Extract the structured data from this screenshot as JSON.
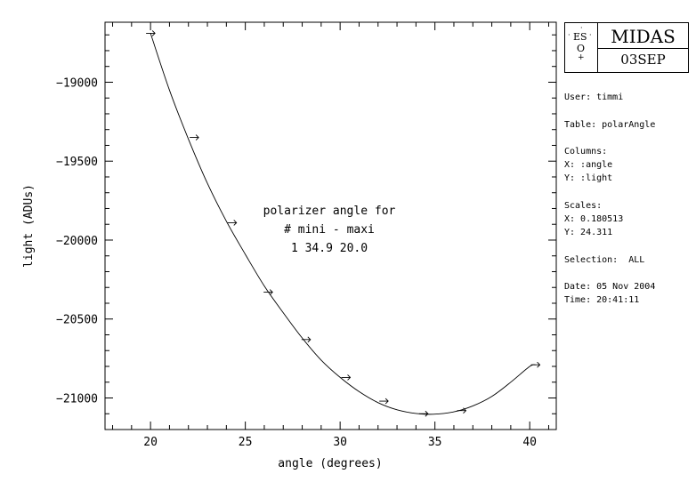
{
  "logo": {
    "eso_text": "ES",
    "eso_o": "O",
    "title": "MIDAS",
    "version": "03SEP"
  },
  "info": {
    "user": "User: timmi",
    "table": "Table: polarAngle",
    "columns_label": "Columns:",
    "columns_x": "X: :angle",
    "columns_y": "Y: :light",
    "scales_label": "Scales:",
    "scales_x": "X: 0.180513",
    "scales_y": "Y: 24.311",
    "selection": "Selection:  ALL",
    "date": "Date: 05 Nov 2004",
    "time": "Time: 20:41:11"
  },
  "chart_data": {
    "type": "scatter",
    "title": "",
    "xlabel": "angle (degrees)",
    "ylabel": "light (ADUs)",
    "xlim": [
      17.6,
      41.4
    ],
    "ylim": [
      -21200,
      -18620
    ],
    "x_ticks": [
      20,
      25,
      30,
      35,
      40
    ],
    "y_ticks": [
      -21000,
      -20500,
      -20000,
      -19500,
      -19000
    ],
    "grid": false,
    "annotation": [
      "polarizer angle for",
      "# mini - maxi",
      "1 34.9 20.0"
    ],
    "points": [
      {
        "x": 20.0,
        "y": -18690
      },
      {
        "x": 22.3,
        "y": -19350
      },
      {
        "x": 24.3,
        "y": -19890
      },
      {
        "x": 26.2,
        "y": -20330
      },
      {
        "x": 28.2,
        "y": -20630
      },
      {
        "x": 30.3,
        "y": -20870
      },
      {
        "x": 32.3,
        "y": -21020
      },
      {
        "x": 34.4,
        "y": -21100
      },
      {
        "x": 36.4,
        "y": -21080
      },
      {
        "x": 40.3,
        "y": -20790
      }
    ],
    "fit": {
      "type": "polynomial",
      "minimum_x": 34.9,
      "samples": [
        {
          "x": 20.0,
          "y": -18690
        },
        {
          "x": 21.0,
          "y": -19050
        },
        {
          "x": 22.0,
          "y": -19360
        },
        {
          "x": 23.0,
          "y": -19640
        },
        {
          "x": 24.0,
          "y": -19880
        },
        {
          "x": 25.0,
          "y": -20090
        },
        {
          "x": 26.0,
          "y": -20290
        },
        {
          "x": 27.0,
          "y": -20460
        },
        {
          "x": 28.0,
          "y": -20620
        },
        {
          "x": 29.0,
          "y": -20760
        },
        {
          "x": 30.0,
          "y": -20870
        },
        {
          "x": 31.0,
          "y": -20960
        },
        {
          "x": 32.0,
          "y": -21030
        },
        {
          "x": 33.0,
          "y": -21075
        },
        {
          "x": 34.0,
          "y": -21098
        },
        {
          "x": 34.9,
          "y": -21103
        },
        {
          "x": 36.0,
          "y": -21088
        },
        {
          "x": 37.0,
          "y": -21050
        },
        {
          "x": 38.0,
          "y": -20990
        },
        {
          "x": 39.0,
          "y": -20900
        },
        {
          "x": 40.0,
          "y": -20800
        },
        {
          "x": 40.3,
          "y": -20790
        }
      ]
    }
  }
}
